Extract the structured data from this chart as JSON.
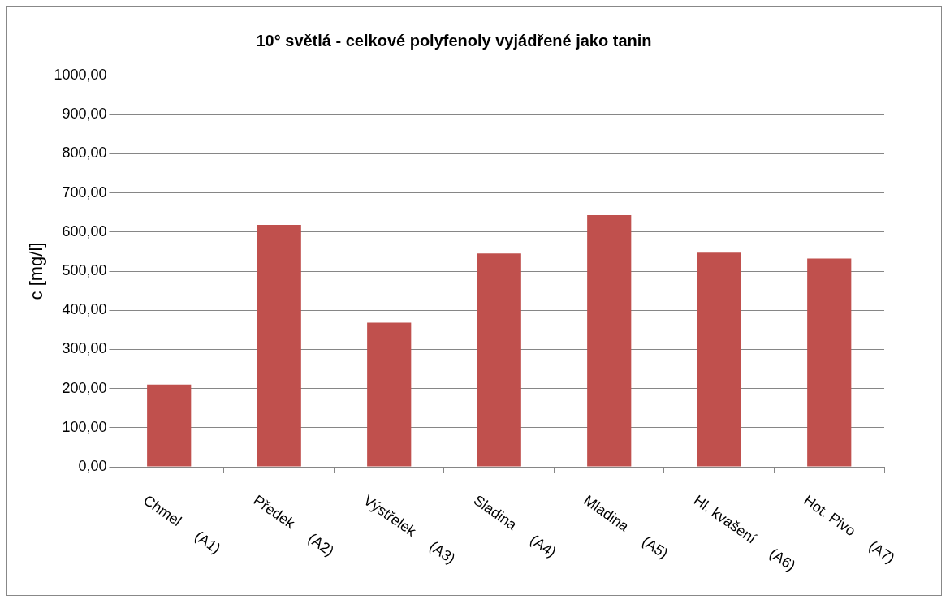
{
  "chart_data": {
    "type": "bar",
    "title": "10° světlá - celkové polyfenoly vyjádřené jako tanin",
    "ylabel": "c [mg/l]",
    "categories": [
      "Chmel     (A1)",
      "Předek     (A2)",
      "Výstřelek     (A3)",
      "Sladina     (A4)",
      "Mladina     (A5)",
      "Hl. kvašení     (A6)",
      "Hot. Pivo     (A7)"
    ],
    "values": [
      210,
      618,
      368,
      545,
      643,
      547,
      532
    ],
    "color": "#c0504d",
    "ylim": [
      0,
      1000
    ],
    "yticks": [
      {
        "value": 0,
        "label": "0,00"
      },
      {
        "value": 100,
        "label": "100,00"
      },
      {
        "value": 200,
        "label": "200,00"
      },
      {
        "value": 300,
        "label": "300,00"
      },
      {
        "value": 400,
        "label": "400,00"
      },
      {
        "value": 500,
        "label": "500,00"
      },
      {
        "value": 600,
        "label": "600,00"
      },
      {
        "value": 700,
        "label": "700,00"
      },
      {
        "value": 800,
        "label": "800,00"
      },
      {
        "value": 900,
        "label": "900,00"
      },
      {
        "value": 1000,
        "label": "1000,00"
      }
    ],
    "grid": "y",
    "legend": false
  }
}
